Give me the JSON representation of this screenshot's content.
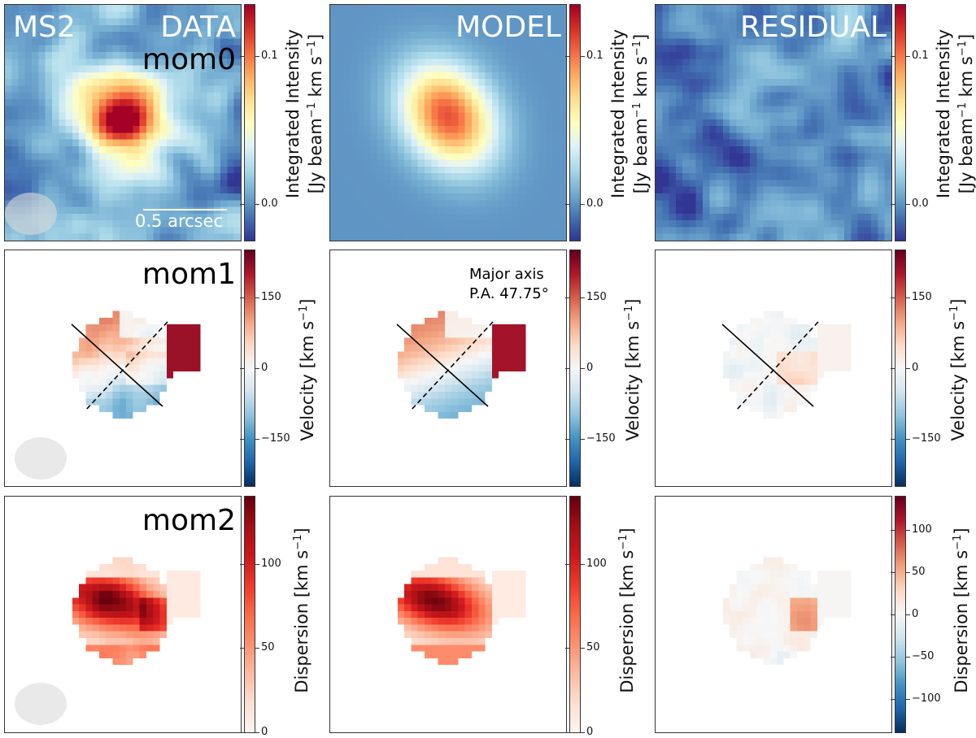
{
  "figure": {
    "object_name": "MS2",
    "columns": [
      "DATA",
      "MODEL",
      "RESIDUAL"
    ],
    "rows": [
      "mom0",
      "mom1",
      "mom2"
    ],
    "scale_bar_label": "0.5 arcsec",
    "major_axis_label": "Major axis",
    "pa_label": "P.A. 47.75°"
  },
  "chart_data": [
    {
      "type": "heatmap",
      "row": "mom0",
      "column": "DATA",
      "title": "DATA",
      "annotation": "mom0",
      "colormap": "RdYlBu_r",
      "clim": [
        -0.025,
        0.135
      ],
      "colorbar_ticks": [
        0.0,
        0.1
      ],
      "colorbar_ticklabels": [
        "0.0",
        "0.1"
      ],
      "colorbar_label": "Integrated Intensity [Jy beam⁻¹ km s⁻¹]",
      "description": "Compact emission peak near centre (~0.13), noisy background near 0.0",
      "beam_shown": true
    },
    {
      "type": "heatmap",
      "row": "mom0",
      "column": "MODEL",
      "title": "MODEL",
      "colormap": "RdYlBu_r",
      "clim": [
        -0.025,
        0.135
      ],
      "colorbar_ticks": [
        0.0,
        0.1
      ],
      "colorbar_ticklabels": [
        "0.0",
        "0.1"
      ],
      "colorbar_label": "Integrated Intensity [Jy beam⁻¹ km s⁻¹]",
      "description": "Smooth elliptical Gaussian, peak ~0.11 at centre"
    },
    {
      "type": "heatmap",
      "row": "mom0",
      "column": "RESIDUAL",
      "title": "RESIDUAL",
      "colormap": "RdYlBu_r",
      "clim": [
        -0.025,
        0.135
      ],
      "colorbar_ticks": [
        0.0,
        0.1
      ],
      "colorbar_ticklabels": [
        "0.0",
        "0.1"
      ],
      "colorbar_label": "Integrated Intensity [Jy beam⁻¹ km s⁻¹]",
      "description": "Noise-like residual, mostly between -0.02 and 0.05"
    },
    {
      "type": "heatmap",
      "row": "mom1",
      "column": "DATA",
      "annotation": "mom1",
      "colormap": "RdBu_r",
      "clim": [
        -250,
        250
      ],
      "colorbar_ticks": [
        -150,
        0,
        150
      ],
      "colorbar_ticklabels": [
        "−150",
        "0",
        "150"
      ],
      "colorbar_label": "Velocity [km s⁻¹]",
      "description": "Velocity gradient: redshifted (~+100) upper-left, blueshifted (~-100) lower; companion clump ~+200 on right",
      "position_angle_deg": 47.75,
      "beam_shown": true
    },
    {
      "type": "heatmap",
      "row": "mom1",
      "column": "MODEL",
      "annotation": "Major axis P.A. 47.75°",
      "colormap": "RdBu_r",
      "clim": [
        -250,
        250
      ],
      "colorbar_ticks": [
        -150,
        0,
        150
      ],
      "colorbar_ticklabels": [
        "−150",
        "0",
        "150"
      ],
      "colorbar_label": "Velocity [km s⁻¹]",
      "position_angle_deg": 47.75
    },
    {
      "type": "heatmap",
      "row": "mom1",
      "column": "RESIDUAL",
      "colormap": "RdBu_r",
      "clim": [
        -250,
        250
      ],
      "colorbar_ticks": [
        -150,
        0,
        150
      ],
      "colorbar_ticklabels": [
        "−150",
        "0",
        "150"
      ],
      "colorbar_label": "Velocity [km s⁻¹]",
      "description": "Residual velocities mostly within ±50, positive excess (~+70) right of centre",
      "position_angle_deg": 47.75
    },
    {
      "type": "heatmap",
      "row": "mom2",
      "column": "DATA",
      "annotation": "mom2",
      "colormap": "Reds",
      "clim": [
        0,
        140
      ],
      "colorbar_ticks": [
        0,
        50,
        100
      ],
      "colorbar_ticklabels": [
        "0",
        "50",
        "100"
      ],
      "colorbar_label": "Dispersion [km s⁻¹]",
      "description": "Dispersion peaks ~130 along a central band, ~50 in outskirts",
      "beam_shown": true
    },
    {
      "type": "heatmap",
      "row": "mom2",
      "column": "MODEL",
      "colormap": "Reds",
      "clim": [
        0,
        140
      ],
      "colorbar_ticks": [
        0,
        50,
        100
      ],
      "colorbar_ticklabels": [
        "0",
        "50",
        "100"
      ],
      "colorbar_label": "Dispersion [km s⁻¹]"
    },
    {
      "type": "heatmap",
      "row": "mom2",
      "column": "RESIDUAL",
      "colormap": "RdBu_r",
      "clim": [
        -140,
        140
      ],
      "colorbar_ticks": [
        -100,
        -50,
        0,
        50,
        100
      ],
      "colorbar_ticklabels": [
        "−100",
        "−50",
        "0",
        "50",
        "100"
      ],
      "colorbar_label": "Dispersion [km s⁻¹]",
      "description": "Residual dispersion near 0, excess ~+60 on right side"
    }
  ],
  "colorbar_labels": {
    "mom0_line1": "Integrated Intensity",
    "mom0_line2_a": "[Jy beam",
    "mom0_sup1": "−1",
    "mom0_line2_b": " km s",
    "mom0_sup2": "−1",
    "mom0_line2_c": "]",
    "mom1_a": "Velocity [km s",
    "mom1_sup": "−1",
    "mom1_b": "]",
    "mom2_a": "Dispersion [km s",
    "mom2_sup": "−1",
    "mom2_b": "]"
  }
}
